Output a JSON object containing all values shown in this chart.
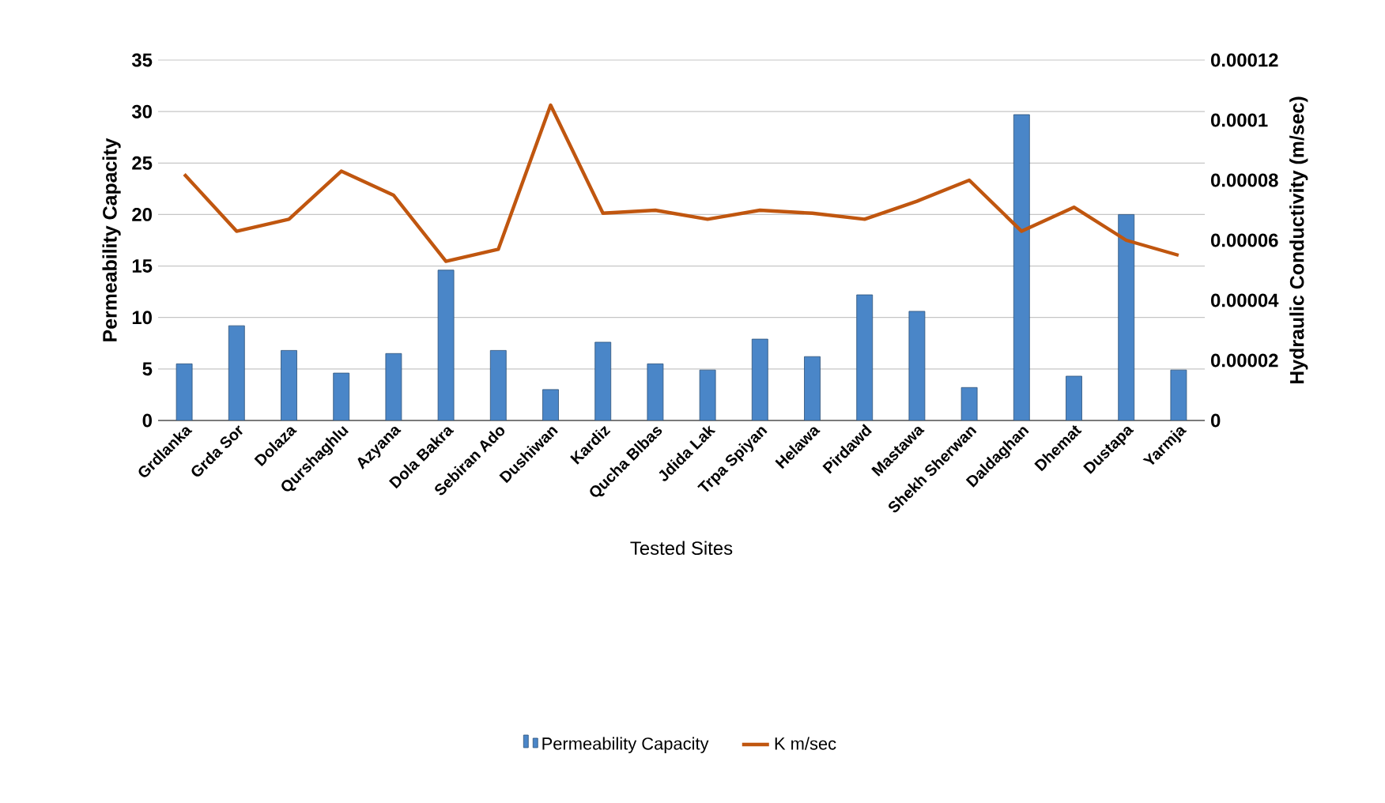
{
  "chart_data": {
    "type": "bar",
    "xlabel": "Tested Sites",
    "ylabel": "Permeability Capacity",
    "y2label": "Hydraulic Conductivity (m/sec)",
    "categories": [
      "Grdlanka",
      "Grda Sor",
      "Dolaza",
      "Qurshaghlu",
      "Azyana",
      "Dola Bakra",
      "Sebiran Ado",
      "Dushiwan",
      "Kardiz",
      "Qucha Blbas",
      "Jdida Lak",
      "Trpa Spiyan",
      "Helawa",
      "Pirdawd",
      "Mastawa",
      "Shekh Sherwan",
      "Daldaghan",
      "Dhemat",
      "Dustapa",
      "Yarmja"
    ],
    "series": [
      {
        "name": "Permeability Capacity",
        "color": "#4a86c8",
        "values": [
          5.5,
          9.2,
          6.8,
          4.6,
          6.5,
          14.6,
          6.8,
          3.0,
          7.6,
          5.5,
          4.9,
          7.9,
          6.2,
          12.2,
          10.6,
          3.2,
          29.7,
          4.3,
          20.0,
          4.9
        ]
      },
      {
        "name": "K m/sec",
        "type": "line",
        "axis": "y2",
        "color": "#c0560f",
        "values": [
          8.2e-05,
          6.3e-05,
          6.7e-05,
          8.3e-05,
          7.5e-05,
          5.3e-05,
          5.7e-05,
          0.000105,
          6.9e-05,
          7e-05,
          6.7e-05,
          7e-05,
          6.9e-05,
          6.7e-05,
          7.3e-05,
          8e-05,
          6.3e-05,
          7.1e-05,
          6e-05,
          5.5e-05
        ]
      }
    ],
    "ylim": [
      0,
      35
    ],
    "yticks": [
      0,
      5,
      10,
      15,
      20,
      25,
      30,
      35
    ],
    "y2lim": [
      0,
      0.00012
    ],
    "y2ticks": [
      {
        "value": 0,
        "label": "0"
      },
      {
        "value": 2e-05,
        "label": "0.00002"
      },
      {
        "value": 4e-05,
        "label": "0.00004"
      },
      {
        "value": 6e-05,
        "label": "0.00006"
      },
      {
        "value": 8e-05,
        "label": "0.00008"
      },
      {
        "value": 0.0001,
        "label": "0.0001"
      },
      {
        "value": 0.00012,
        "label": "0.00012"
      }
    ],
    "grid": "y",
    "legend": "bottom",
    "marker": "none"
  }
}
